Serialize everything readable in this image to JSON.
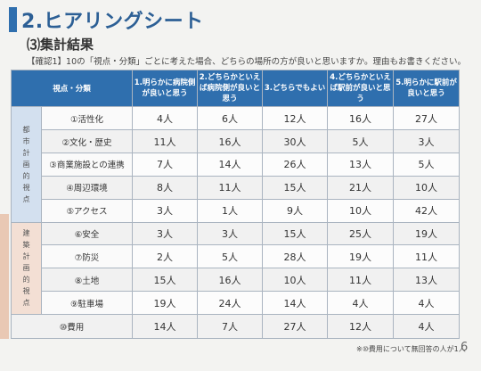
{
  "heading": "2.ヒアリングシート",
  "subheading": "⑶集計結果",
  "question": "【確認1】10の「視点・分類」ごとに考えた場合、どちらの場所の方が良いと思いますか。理由もお書きください。",
  "table": {
    "corner": "視点・分類",
    "headers": [
      "1.明らかに病院側が良いと思う",
      "2.どちらかといえば病院側が良いと思う",
      "3.どちらでもよい",
      "4.どちらかといえば駅前が良いと思う",
      "5.明らかに駅前が良いと思う"
    ],
    "group1": "都市計画的視点",
    "group2": "建築計画的視点",
    "rows": [
      {
        "label": "①活性化",
        "values": [
          "4人",
          "6人",
          "12人",
          "16人",
          "27人"
        ]
      },
      {
        "label": "②文化・歴史",
        "values": [
          "11人",
          "16人",
          "30人",
          "5人",
          "3人"
        ]
      },
      {
        "label": "③商業施設との連携",
        "values": [
          "7人",
          "14人",
          "26人",
          "13人",
          "5人"
        ]
      },
      {
        "label": "④周辺環境",
        "values": [
          "8人",
          "11人",
          "15人",
          "21人",
          "10人"
        ]
      },
      {
        "label": "⑤アクセス",
        "values": [
          "3人",
          "1人",
          "9人",
          "10人",
          "42人"
        ]
      },
      {
        "label": "⑥安全",
        "values": [
          "3人",
          "3人",
          "15人",
          "25人",
          "19人"
        ]
      },
      {
        "label": "⑦防災",
        "values": [
          "2人",
          "5人",
          "28人",
          "19人",
          "11人"
        ]
      },
      {
        "label": "⑧土地",
        "values": [
          "15人",
          "16人",
          "10人",
          "11人",
          "13人"
        ]
      },
      {
        "label": "⑨駐車場",
        "values": [
          "19人",
          "24人",
          "14人",
          "4人",
          "4人"
        ]
      },
      {
        "label": "⑩費用",
        "values": [
          "14人",
          "7人",
          "27人",
          "12人",
          "4人"
        ]
      }
    ]
  },
  "footnote": "※⑩費用について無回答の人が1人",
  "page_number": "6"
}
